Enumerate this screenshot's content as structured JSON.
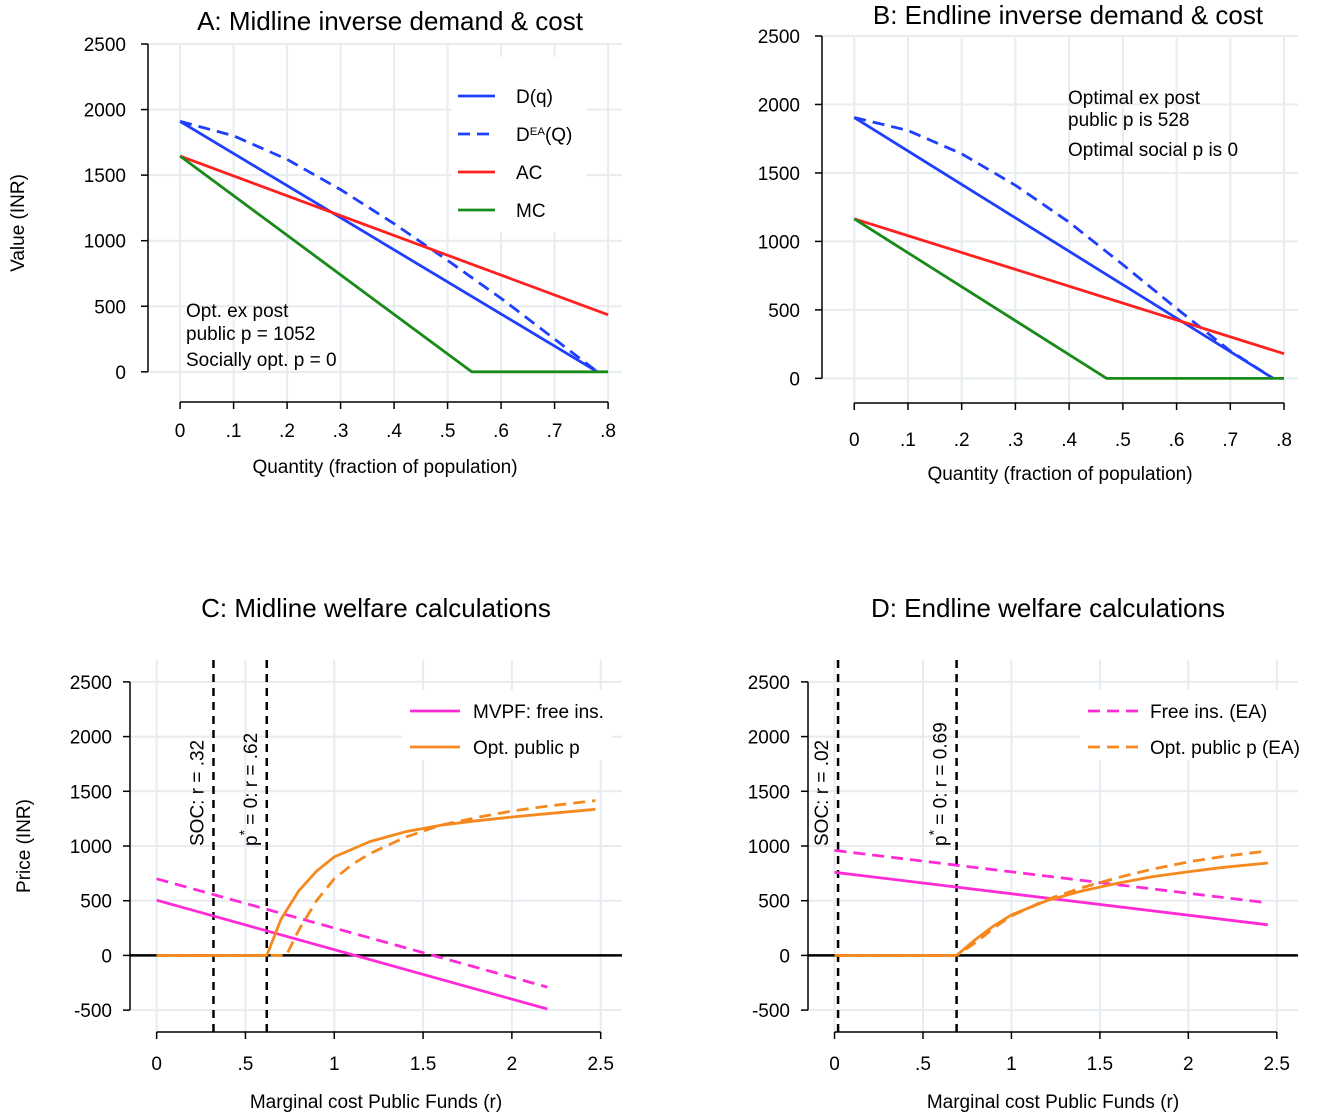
{
  "chart_data": [
    {
      "type": "line",
      "title": "A: Midline inverse demand & cost",
      "xlabel": "Quantity (fraction of population)",
      "ylabel": "Value (INR)",
      "xlim": [
        0,
        0.8
      ],
      "ylim": [
        0,
        2500
      ],
      "xticks": [
        "0",
        ".1",
        ".2",
        ".3",
        ".4",
        ".5",
        ".6",
        ".7",
        ".8"
      ],
      "yticks": [
        "0",
        "500",
        "1000",
        "1500",
        "2000",
        "2500"
      ],
      "grid": true,
      "legend_position": "top-right",
      "series": [
        {
          "name": "D(q)",
          "color": "#1f3fff",
          "dash": false,
          "x": [
            0,
            0.78
          ],
          "y": [
            1910,
            0
          ]
        },
        {
          "name": "D^EA(Q)",
          "color": "#1f3fff",
          "dash": true,
          "x": [
            0,
            0.1,
            0.2,
            0.3,
            0.4,
            0.5,
            0.6,
            0.7,
            0.78
          ],
          "y": [
            1910,
            1800,
            1620,
            1390,
            1130,
            850,
            560,
            250,
            0
          ]
        },
        {
          "name": "AC",
          "color": "#ff2020",
          "dash": false,
          "x": [
            0,
            0.8
          ],
          "y": [
            1645,
            435
          ]
        },
        {
          "name": "MC",
          "color": "#1a8a1a",
          "dash": false,
          "x": [
            0,
            0.545,
            0.8
          ],
          "y": [
            1645,
            0,
            0
          ]
        }
      ],
      "annotations": [
        {
          "text": "Opt. ex post",
          "color": "#ff2020"
        },
        {
          "text": "public p = 1052",
          "color": "#ff2020"
        },
        {
          "text": "Socially opt. p = 0",
          "color": "#1a8a1a"
        }
      ]
    },
    {
      "type": "line",
      "title": "B: Endline inverse demand & cost",
      "xlabel": "Quantity (fraction of population)",
      "ylabel": "",
      "xlim": [
        0,
        0.8
      ],
      "ylim": [
        0,
        2500
      ],
      "xticks": [
        "0",
        ".1",
        ".2",
        ".3",
        ".4",
        ".5",
        ".6",
        ".7",
        ".8"
      ],
      "yticks": [
        "0",
        "500",
        "1000",
        "1500",
        "2000",
        "2500"
      ],
      "grid": true,
      "series": [
        {
          "color": "#1f3fff",
          "dash": false,
          "x": [
            0,
            0.78
          ],
          "y": [
            1905,
            0
          ]
        },
        {
          "color": "#1f3fff",
          "dash": true,
          "x": [
            0,
            0.1,
            0.2,
            0.3,
            0.4,
            0.5,
            0.6,
            0.7,
            0.78
          ],
          "y": [
            1905,
            1810,
            1640,
            1410,
            1140,
            830,
            510,
            200,
            0
          ]
        },
        {
          "color": "#ff2020",
          "dash": false,
          "x": [
            0,
            0.8
          ],
          "y": [
            1165,
            180
          ]
        },
        {
          "color": "#1a8a1a",
          "dash": false,
          "x": [
            0,
            0.47,
            0.8
          ],
          "y": [
            1165,
            0,
            0
          ]
        }
      ],
      "annotations": [
        {
          "text": "Optimal ex post",
          "color": "#ff2020"
        },
        {
          "text": "public p is 528",
          "color": "#ff2020"
        },
        {
          "text": "Optimal social p is 0",
          "color": "#1a8a1a"
        }
      ]
    },
    {
      "type": "line",
      "title": "C: Midline welfare calculations",
      "xlabel": "Marginal cost Public Funds (r)",
      "ylabel": "Price (INR)",
      "xlim": [
        -0.15,
        2.62
      ],
      "ylim": [
        -700,
        2700
      ],
      "xticks": [
        "0",
        ".5",
        "1",
        "1.5",
        "2",
        "2.5"
      ],
      "yticks": [
        "-500",
        "0",
        "500",
        "1000",
        "1500",
        "2000",
        "2500"
      ],
      "grid": true,
      "legend_position": "top-right",
      "vlines": [
        {
          "x": 0.32,
          "label": "SOC: r = .32"
        },
        {
          "x": 0.62,
          "label": "p* = 0: r = .62"
        }
      ],
      "series": [
        {
          "name": "MVPF: free ins.",
          "color": "#ff2bd6",
          "dash": false,
          "x": [
            0,
            2.2
          ],
          "y": [
            505,
            -490
          ]
        },
        {
          "color": "#ff2bd6",
          "dash": true,
          "x": [
            0,
            2.2
          ],
          "y": [
            700,
            -290
          ]
        },
        {
          "name": "Opt. public p",
          "color": "#f5891f",
          "dash": false,
          "x": [
            0,
            0.62,
            0.7,
            0.8,
            0.9,
            1.0,
            1.2,
            1.4,
            1.6,
            1.8,
            2.0,
            2.2,
            2.47
          ],
          "y": [
            0,
            0,
            330,
            590,
            770,
            900,
            1040,
            1130,
            1190,
            1230,
            1265,
            1295,
            1335
          ]
        },
        {
          "color": "#f5891f",
          "dash": true,
          "x": [
            0,
            0.73,
            0.8,
            0.9,
            1.0,
            1.1,
            1.2,
            1.4,
            1.6,
            1.8,
            2.0,
            2.2,
            2.47
          ],
          "y": [
            0,
            0,
            230,
            500,
            700,
            830,
            930,
            1080,
            1190,
            1260,
            1320,
            1365,
            1415
          ]
        }
      ]
    },
    {
      "type": "line",
      "title": "D: Endline welfare calculations",
      "xlabel": "Marginal cost Public Funds (r)",
      "ylabel": "",
      "xlim": [
        -0.15,
        2.62
      ],
      "ylim": [
        -700,
        2700
      ],
      "xticks": [
        "0",
        ".5",
        "1",
        "1.5",
        "2",
        "2.5"
      ],
      "yticks": [
        "-500",
        "0",
        "500",
        "1000",
        "1500",
        "2000",
        "2500"
      ],
      "grid": true,
      "legend_position": "top-right",
      "vlines": [
        {
          "x": 0.02,
          "label": "SOC: r = .02"
        },
        {
          "x": 0.69,
          "label": "p* = 0: r = 0.69"
        }
      ],
      "series": [
        {
          "color": "#ff2bd6",
          "dash": false,
          "x": [
            0,
            2.45
          ],
          "y": [
            760,
            280
          ]
        },
        {
          "name": "Free ins. (EA)",
          "color": "#ff2bd6",
          "dash": true,
          "x": [
            0,
            2.45
          ],
          "y": [
            960,
            480
          ]
        },
        {
          "color": "#f5891f",
          "dash": false,
          "x": [
            0,
            0.69,
            0.8,
            0.9,
            1.0,
            1.2,
            1.4,
            1.6,
            1.8,
            2.0,
            2.2,
            2.45
          ],
          "y": [
            0,
            0,
            150,
            270,
            370,
            500,
            590,
            660,
            720,
            765,
            805,
            845
          ]
        },
        {
          "name": "Opt. public p (EA)",
          "color": "#f5891f",
          "dash": true,
          "x": [
            0,
            0.69,
            0.8,
            0.9,
            1.0,
            1.2,
            1.4,
            1.6,
            1.8,
            2.0,
            2.2,
            2.45
          ],
          "y": [
            0,
            0,
            120,
            250,
            360,
            510,
            620,
            710,
            790,
            855,
            905,
            955
          ]
        }
      ]
    }
  ]
}
